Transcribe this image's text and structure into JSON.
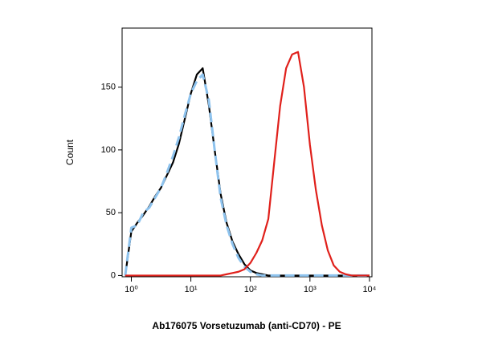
{
  "chart_data": {
    "type": "line",
    "x_label": "Ab176075 Vorsetuzumab (anti-CD70) - PE",
    "y_label": "Count",
    "x_log": true,
    "x": [
      0.79,
      1,
      1.26,
      1.58,
      2,
      2.51,
      3.16,
      3.98,
      5.01,
      6.31,
      7.94,
      10,
      12.6,
      15.8,
      20,
      25.1,
      31.6,
      39.8,
      50.1,
      63.1,
      79.4,
      100,
      126,
      158,
      200,
      251,
      316,
      398,
      501,
      631,
      794,
      1000,
      1259,
      1585,
      1995,
      2512,
      3162,
      3981,
      5012,
      6310,
      7943,
      10000
    ],
    "series": [
      {
        "color": "#000000",
        "dash": false,
        "values": [
          0,
          35,
          42,
          48,
          55,
          63,
          70,
          80,
          90,
          105,
          125,
          145,
          160,
          165,
          136,
          100,
          65,
          42,
          27,
          17,
          9,
          4,
          2,
          1,
          0,
          0,
          0,
          0,
          0,
          0,
          0,
          0,
          0,
          0,
          0,
          0,
          0,
          0,
          0,
          0,
          0,
          0
        ]
      },
      {
        "color": "#8ec3ee",
        "dash": true,
        "values": [
          0,
          38,
          40,
          50,
          54,
          62,
          70,
          82,
          95,
          110,
          128,
          145,
          155,
          160,
          140,
          100,
          62,
          40,
          25,
          14,
          7,
          3,
          1,
          0,
          0,
          0,
          0,
          0,
          0,
          0,
          0,
          0,
          0,
          0,
          0,
          0,
          0,
          0,
          0,
          0,
          0,
          0
        ]
      },
      {
        "color": "#e0201b",
        "dash": false,
        "values": [
          0,
          0,
          0,
          0,
          0,
          0,
          0,
          0,
          0,
          0,
          0,
          0,
          0,
          0,
          0,
          0,
          0,
          1,
          2,
          3,
          5,
          10,
          18,
          28,
          45,
          90,
          135,
          165,
          176,
          178,
          150,
          104,
          68,
          40,
          20,
          8,
          3,
          1,
          0,
          0,
          0,
          0
        ]
      }
    ],
    "xlim": [
      0.7,
      11000
    ],
    "xticks": [
      {
        "value": 1,
        "label": "10⁰"
      },
      {
        "value": 10,
        "label": "10¹"
      },
      {
        "value": 100,
        "label": "10²"
      },
      {
        "value": 1000,
        "label": "10³"
      },
      {
        "value": 10000,
        "label": "10⁴"
      }
    ],
    "ylim": [
      -1,
      197
    ],
    "yticks": [
      0,
      50,
      100,
      150
    ]
  }
}
